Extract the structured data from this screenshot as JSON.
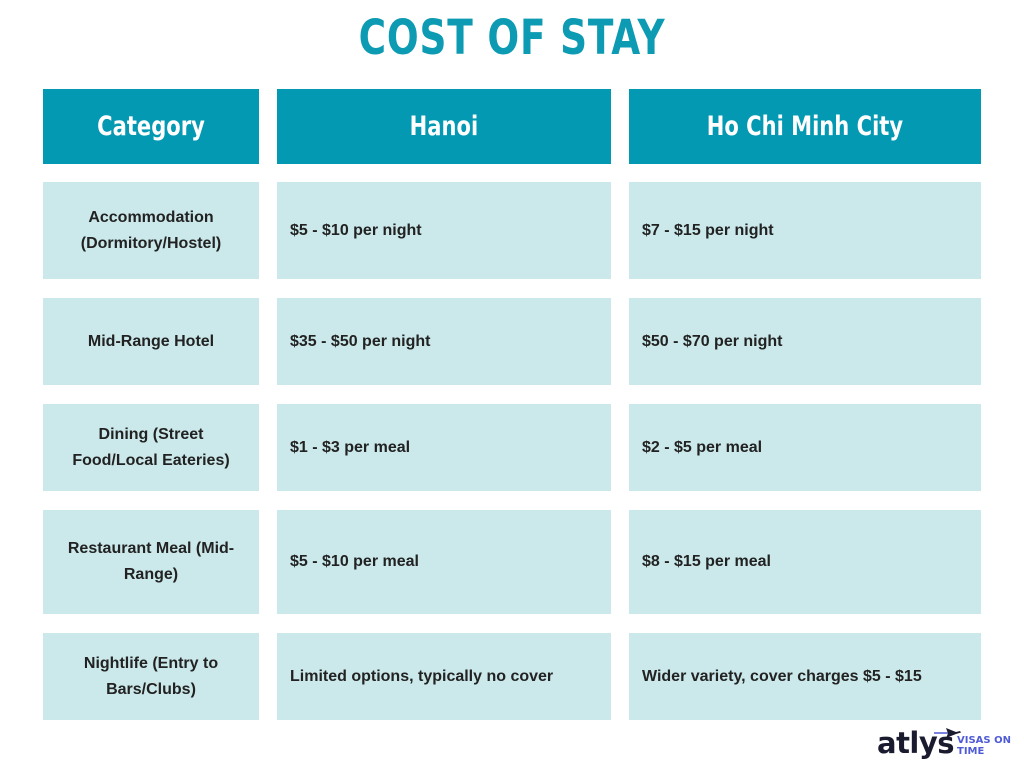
{
  "title": "COST OF STAY",
  "headers": [
    "Category",
    "Hanoi",
    "Ho Chi Minh City"
  ],
  "rows": [
    {
      "category": [
        "Accommodation",
        "(Dormitory/Hostel)"
      ],
      "hanoi": "$5 - $10 per night",
      "hcmc": "$7 - $15 per night"
    },
    {
      "category": [
        "Mid-Range Hotel"
      ],
      "hanoi": "$35 - $50 per night",
      "hcmc": "$50 - $70 per night"
    },
    {
      "category": [
        "Dining (Street",
        "Food/Local Eateries)"
      ],
      "hanoi": "$1 - $3 per meal",
      "hcmc": "$2 - $5 per meal"
    },
    {
      "category": [
        "Restaurant Meal (Mid-",
        "Range)"
      ],
      "hanoi": "$5 - $10 per meal",
      "hcmc": "$8 - $15 per meal"
    },
    {
      "category": [
        "Nightlife (Entry to",
        "Bars/Clubs)"
      ],
      "hanoi": "Limited options, typically no cover",
      "hcmc": "Wider variety, cover charges $5 - $15"
    }
  ],
  "logo": {
    "word": "atlys",
    "tagline_1": "VISAS ON",
    "tagline_2": "TIME",
    "icon": "airplane-icon"
  },
  "colors": {
    "accent": "#0499b3",
    "cell": "#cbe9eb",
    "logo_text": "#1b1b2f",
    "logo_tag": "#4f5bd5"
  }
}
